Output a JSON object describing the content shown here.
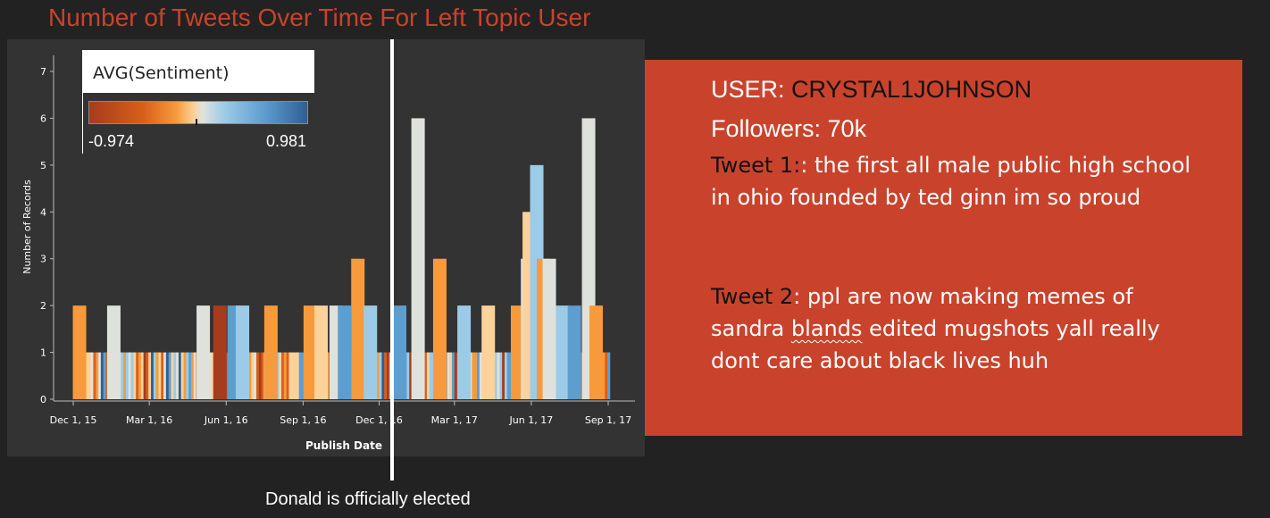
{
  "title": "Number of Tweets Over Time For Left Topic User",
  "legend": {
    "title": "AVG(Sentiment)",
    "min": "-0.974",
    "max": "0.981"
  },
  "annotation": "Donald is officially elected",
  "info": {
    "user_label": "USER: ",
    "user_name": "CRYSTAL1JOHNSON",
    "followers": "Followers: 70k",
    "tweet1_label": "Tweet 1:",
    "tweet1_text": ": the first all male public high school in ohio founded by ted ginn im so proud",
    "tweet2_label": "Tweet 2",
    "tweet2_pre": ": ppl are now making memes of sandra ",
    "tweet2_squiggle": "blands",
    "tweet2_post": " edited mugshots yall really dont care about black lives huh"
  },
  "chart_data": {
    "type": "bar",
    "xlabel": "Publish Date",
    "ylabel": "Number of Records",
    "ylim": [
      0,
      7
    ],
    "y_ticks": [
      "0",
      "1",
      "2",
      "3",
      "4",
      "5",
      "6",
      "7"
    ],
    "x_ticks": [
      {
        "label": "Dec 1, 15",
        "date": "2015-12-01"
      },
      {
        "label": "Mar 1, 16",
        "date": "2016-03-01"
      },
      {
        "label": "Jun 1, 16",
        "date": "2016-06-01"
      },
      {
        "label": "Sep 1, 16",
        "date": "2016-09-01"
      },
      {
        "label": "Dec 1, 16",
        "date": "2016-12-01"
      },
      {
        "label": "Mar 1, 17",
        "date": "2017-03-01"
      },
      {
        "label": "Jun 1, 17",
        "date": "2017-06-01"
      },
      {
        "label": "Sep 1, 17",
        "date": "2017-09-01"
      }
    ],
    "x_range": [
      "2015-12-01",
      "2017-09-01"
    ],
    "color_scale": [
      "#a63c1e",
      "#d9601a",
      "#f79a3c",
      "#fbd29a",
      "#dfe2dc",
      "#9ccbe8",
      "#5e9ecf",
      "#2f5f94"
    ],
    "bars": [
      {
        "date": "2015-12-08",
        "value": 2,
        "sentiment": -0.3
      },
      {
        "date": "2016-01-18",
        "value": 2,
        "sentiment": 0.0
      },
      {
        "date": "2016-05-04",
        "value": 2,
        "sentiment": 0.0
      },
      {
        "date": "2016-05-24",
        "value": 2,
        "sentiment": -0.9
      },
      {
        "date": "2016-06-10",
        "value": 2,
        "sentiment": 0.6
      },
      {
        "date": "2016-06-20",
        "value": 2,
        "sentiment": 0.3
      },
      {
        "date": "2016-07-24",
        "value": 2,
        "sentiment": -0.3
      },
      {
        "date": "2016-09-09",
        "value": 2,
        "sentiment": -0.4
      },
      {
        "date": "2016-09-22",
        "value": 2,
        "sentiment": -0.2
      },
      {
        "date": "2016-10-10",
        "value": 2,
        "sentiment": 0.0
      },
      {
        "date": "2016-10-20",
        "value": 2,
        "sentiment": 0.7
      },
      {
        "date": "2016-11-05",
        "value": 3,
        "sentiment": -0.5
      },
      {
        "date": "2016-11-20",
        "value": 2,
        "sentiment": 0.5
      },
      {
        "date": "2016-12-25",
        "value": 2,
        "sentiment": 0.6
      },
      {
        "date": "2017-01-16",
        "value": 6,
        "sentiment": 0.0
      },
      {
        "date": "2017-02-11",
        "value": 3,
        "sentiment": -0.35
      },
      {
        "date": "2017-03-12",
        "value": 2,
        "sentiment": 0.3
      },
      {
        "date": "2017-04-10",
        "value": 2,
        "sentiment": -0.2
      },
      {
        "date": "2017-05-15",
        "value": 2,
        "sentiment": -0.3
      },
      {
        "date": "2017-05-27",
        "value": 3,
        "sentiment": 0.05
      },
      {
        "date": "2017-05-29",
        "value": 4,
        "sentiment": -0.15
      },
      {
        "date": "2017-06-07",
        "value": 5,
        "sentiment": 0.3
      },
      {
        "date": "2017-06-15",
        "value": 3,
        "sentiment": -0.3
      },
      {
        "date": "2017-06-22",
        "value": 3,
        "sentiment": 0.0
      },
      {
        "date": "2017-07-08",
        "value": 2,
        "sentiment": 0.4
      },
      {
        "date": "2017-07-22",
        "value": 2,
        "sentiment": 0.6
      },
      {
        "date": "2017-08-08",
        "value": 6,
        "sentiment": 0.05
      },
      {
        "date": "2017-08-17",
        "value": 2,
        "sentiment": -0.3
      }
    ],
    "daily_value": 1,
    "daily_range": [
      "2015-12-04",
      "2017-08-31"
    ]
  }
}
